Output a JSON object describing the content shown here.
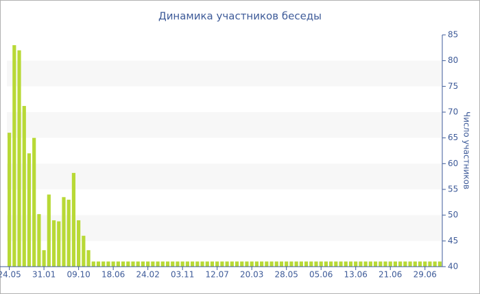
{
  "chart_data": {
    "type": "bar",
    "title": "Динамика участников беседы",
    "y_label": "Число участников",
    "categories": [
      "24.05",
      null,
      null,
      null,
      null,
      null,
      null,
      "31.01",
      null,
      null,
      null,
      null,
      null,
      null,
      "09.10",
      null,
      null,
      null,
      null,
      null,
      null,
      "18.06",
      null,
      null,
      null,
      null,
      null,
      null,
      "24.02",
      null,
      null,
      null,
      null,
      null,
      null,
      "03.11",
      null,
      null,
      null,
      null,
      null,
      null,
      "12.07",
      null,
      null,
      null,
      null,
      null,
      null,
      "20.03",
      null,
      null,
      null,
      null,
      null,
      null,
      "28.05",
      null,
      null,
      null,
      null,
      null,
      null,
      "05.06",
      null,
      null,
      null,
      null,
      null,
      null,
      "13.06",
      null,
      null,
      null,
      null,
      null,
      null,
      "21.06",
      null,
      null,
      null,
      null,
      null,
      null,
      "29.06",
      null,
      null,
      null
    ],
    "values": [
      66,
      83,
      82,
      71.2,
      62,
      65,
      50.2,
      43.2,
      54,
      49,
      48.8,
      53.5,
      53,
      58.2,
      49,
      46,
      43.2,
      41,
      41,
      41,
      41,
      41,
      41,
      41,
      41,
      41,
      41,
      41,
      41,
      41,
      41,
      41,
      41,
      41,
      41,
      41,
      41,
      41,
      41,
      41,
      41,
      41,
      41,
      41,
      41,
      41,
      41,
      41,
      41,
      41,
      41,
      41,
      41,
      41,
      41,
      41,
      41,
      41,
      41,
      41,
      41,
      41,
      41,
      41,
      41,
      41,
      41,
      41,
      41,
      41,
      41,
      41,
      41,
      41,
      41,
      41,
      41,
      41,
      41,
      41,
      41,
      41,
      41,
      41,
      41,
      41,
      41,
      41
    ],
    "color": "#b8d936",
    "ylim": [
      40,
      85
    ],
    "yticks": [
      40,
      45,
      50,
      55,
      60,
      65,
      70,
      75,
      80,
      85
    ],
    "grid": true
  }
}
